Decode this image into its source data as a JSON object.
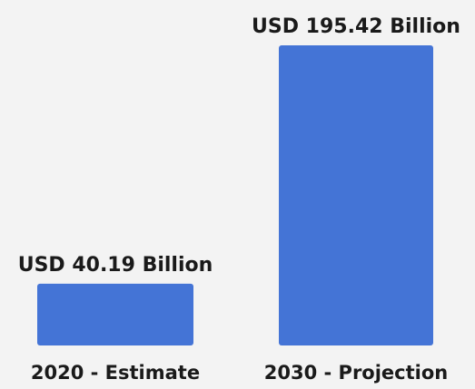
{
  "chart_data": {
    "type": "bar",
    "categories": [
      "2020 - Estimate",
      "2030 - Projection"
    ],
    "values": [
      40.19,
      195.42
    ],
    "data_labels": [
      "USD 40.19 Billion",
      "USD 195.42 Billion"
    ],
    "unit": "USD Billion",
    "title": "",
    "xlabel": "",
    "ylabel": "",
    "grid": false,
    "legend": "none",
    "colors": {
      "bar": "#4474d6",
      "background": "#f3f3f3",
      "text": "#1a1a1a"
    }
  }
}
